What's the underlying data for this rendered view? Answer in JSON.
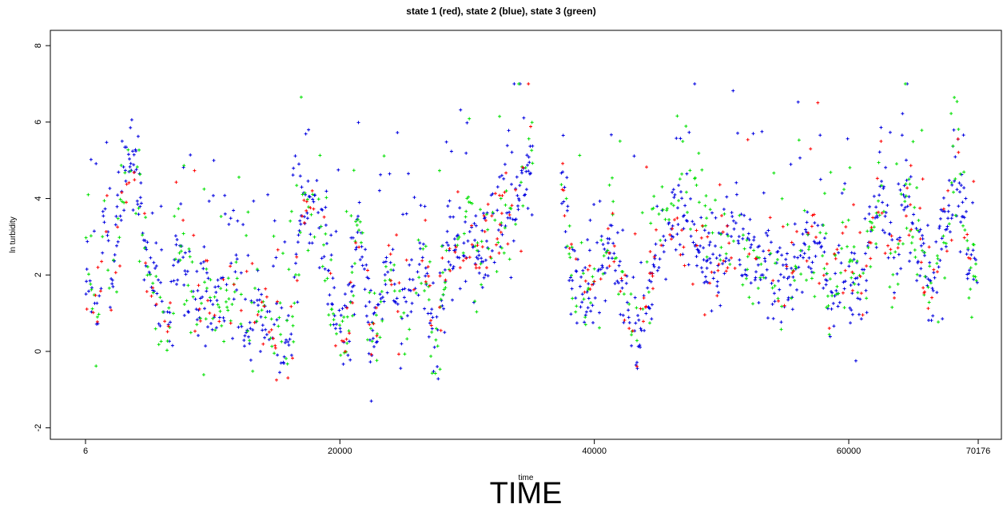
{
  "chart_data": {
    "type": "scatter",
    "title": "state 1 (red), state 2 (blue), state 3 (green)",
    "xlabel": "time",
    "ylabel": "ln turbidity",
    "caption": "TIME",
    "xlim": [
      6,
      70176
    ],
    "ylim": [
      -2.3,
      8.4
    ],
    "x_ticks": [
      6,
      20000,
      40000,
      60000,
      70176
    ],
    "x_tick_labels": [
      "6",
      "20000",
      "40000",
      "60000",
      "70176"
    ],
    "y_ticks": [
      -2,
      0,
      2,
      4,
      6,
      8
    ],
    "y_tick_labels": [
      "-2",
      "0",
      "2",
      "4",
      "6",
      "8"
    ],
    "marker": "+",
    "grid": false,
    "legend": "none",
    "gap": [
      35200,
      37400
    ],
    "series": [
      {
        "color": "#ff0000",
        "density": 0.16,
        "x": [
          6,
          1000,
          1500,
          2000,
          3000,
          3500,
          4500,
          5000,
          6500,
          7500,
          8500,
          10000,
          11000,
          12000,
          13000,
          14000,
          16000,
          17000,
          18500,
          19500,
          20500,
          21500,
          22500,
          24000,
          25000,
          26500,
          27500,
          28500,
          30000,
          31000,
          32500,
          33500,
          35000,
          37500,
          38500,
          39500,
          40500,
          41500,
          42500,
          43500,
          45000,
          46500,
          48000,
          49500,
          50500,
          51500,
          52500,
          53500,
          54500,
          55500,
          56500,
          57500,
          58500,
          59500,
          60500,
          61500,
          62500,
          63500,
          64500,
          65500,
          66500,
          67500,
          68500,
          69500,
          70176
        ],
        "y": [
          2.0,
          1.0,
          4.0,
          1.5,
          4.5,
          5.0,
          3.5,
          2.0,
          0.5,
          3.0,
          1.0,
          1.5,
          1.0,
          2.0,
          0.5,
          1.0,
          0.3,
          4.0,
          3.5,
          1.0,
          0.2,
          3.5,
          0.3,
          2.5,
          0.5,
          2.5,
          0.4,
          2.5,
          3.0,
          2.5,
          3.5,
          3.5,
          5.0,
          4.5,
          1.5,
          1.5,
          2.0,
          3.0,
          1.0,
          0.3,
          2.5,
          3.5,
          3.0,
          2.0,
          3.0,
          2.8,
          2.0,
          2.5,
          1.7,
          2.2,
          2.5,
          3.0,
          1.5,
          2.0,
          1.5,
          2.2,
          4.5,
          2.3,
          4.0,
          2.8,
          1.5,
          3.0,
          4.8,
          2.2,
          2.5
        ]
      },
      {
        "color": "#0000e0",
        "density": 0.6,
        "x": [
          6,
          1000,
          1500,
          2000,
          3000,
          3500,
          4500,
          5000,
          6500,
          7500,
          8500,
          10000,
          11000,
          12000,
          13000,
          14000,
          16000,
          17000,
          18500,
          19500,
          20500,
          21500,
          22500,
          24000,
          25000,
          26500,
          27500,
          28500,
          30000,
          31000,
          32500,
          33500,
          35000,
          37500,
          38500,
          39500,
          40500,
          41500,
          42500,
          43500,
          45000,
          46500,
          48000,
          49500,
          50500,
          51500,
          52500,
          53500,
          54500,
          55500,
          56500,
          57500,
          58500,
          59500,
          60500,
          61500,
          62500,
          63500,
          64500,
          65500,
          66500,
          67500,
          68500,
          69500,
          70176
        ],
        "y": [
          2.0,
          1.0,
          4.0,
          1.5,
          4.5,
          5.0,
          3.5,
          2.0,
          0.5,
          3.0,
          1.0,
          1.5,
          1.0,
          2.0,
          0.5,
          1.0,
          0.3,
          4.0,
          3.5,
          1.0,
          0.2,
          3.5,
          0.3,
          2.5,
          0.5,
          2.5,
          0.4,
          2.5,
          3.0,
          2.5,
          3.5,
          3.5,
          5.0,
          4.5,
          1.5,
          1.5,
          2.0,
          3.0,
          1.0,
          0.3,
          2.5,
          3.5,
          3.0,
          2.0,
          3.0,
          2.8,
          2.0,
          2.5,
          1.7,
          2.2,
          2.5,
          3.0,
          1.5,
          2.0,
          1.5,
          2.2,
          4.5,
          2.3,
          4.0,
          2.8,
          1.5,
          3.0,
          4.8,
          2.2,
          2.5
        ]
      },
      {
        "color": "#00e000",
        "density": 0.3,
        "x": [
          6,
          1000,
          1500,
          2000,
          3000,
          3500,
          4500,
          5000,
          6500,
          7500,
          8500,
          10000,
          11000,
          12000,
          13000,
          14000,
          16000,
          17000,
          18500,
          19500,
          20500,
          21500,
          22500,
          24000,
          25000,
          26500,
          27500,
          28500,
          30000,
          31000,
          32500,
          33500,
          35000,
          37500,
          38500,
          39500,
          40500,
          41500,
          42500,
          43500,
          45000,
          46500,
          47500,
          48500,
          49500,
          50500,
          51500,
          52500,
          53500,
          54500,
          55500,
          56500,
          57500,
          58500,
          59500,
          60500,
          61500,
          62500,
          63500,
          64500,
          65500,
          66500,
          67500,
          68500,
          69500,
          70176
        ],
        "y": [
          2.0,
          1.0,
          4.0,
          1.5,
          4.5,
          5.0,
          3.5,
          2.0,
          0.5,
          3.0,
          1.0,
          1.5,
          1.0,
          2.0,
          0.5,
          1.0,
          0.3,
          4.0,
          3.5,
          1.0,
          0.2,
          3.5,
          0.3,
          2.5,
          0.5,
          2.5,
          0.4,
          2.5,
          3.0,
          2.5,
          3.5,
          3.5,
          5.0,
          4.5,
          1.5,
          1.5,
          2.0,
          3.0,
          1.0,
          0.3,
          3.5,
          4.0,
          4.0,
          3.5,
          2.5,
          3.0,
          2.8,
          2.0,
          2.5,
          1.7,
          2.2,
          2.5,
          3.0,
          1.5,
          2.0,
          1.5,
          2.2,
          4.5,
          2.3,
          4.0,
          2.8,
          1.5,
          3.0,
          4.8,
          2.2,
          2.5
        ]
      }
    ]
  }
}
